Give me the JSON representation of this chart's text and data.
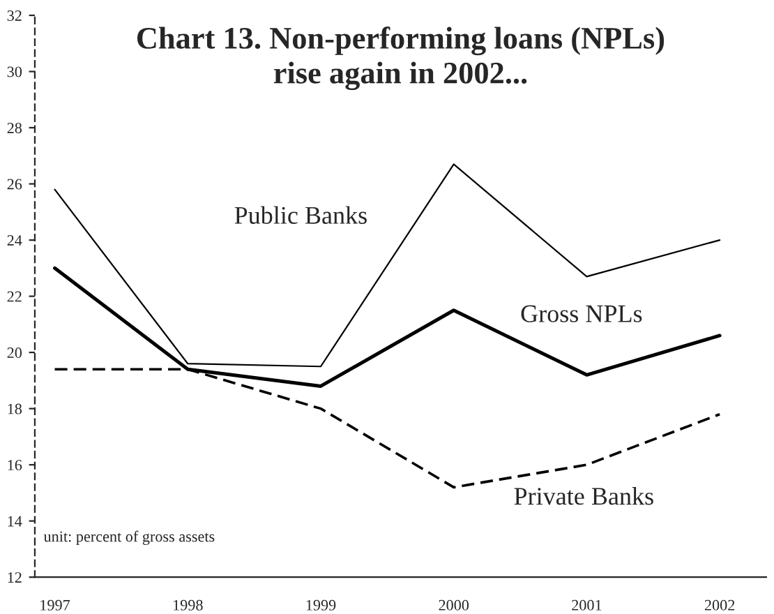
{
  "chart_data": {
    "type": "line",
    "title": "Chart 13. Non-performing loans (NPLs)\nrise again in 2002...",
    "categories": [
      "1997",
      "1998",
      "1999",
      "2000",
      "2001",
      "2002"
    ],
    "series": [
      {
        "name": "Public Banks",
        "color": "#000000",
        "line_style": "solid",
        "values": [
          25.8,
          19.6,
          19.5,
          26.7,
          22.7,
          24.0
        ]
      },
      {
        "name": "Gross NPLs",
        "color": "#000000",
        "line_style": "solid",
        "values": [
          23.0,
          19.4,
          18.8,
          21.5,
          19.2,
          20.6
        ]
      },
      {
        "name": "Private Banks",
        "color": "#000000",
        "line_style": "dashed",
        "values": [
          19.4,
          19.4,
          18.0,
          15.2,
          16.0,
          17.8
        ]
      }
    ],
    "ylim": [
      12,
      32
    ],
    "yticks": [
      12,
      14,
      16,
      18,
      20,
      22,
      24,
      26,
      28,
      30,
      32
    ],
    "grid": false,
    "legend": false,
    "annotations": [
      "unit: percent of gross assets"
    ]
  }
}
